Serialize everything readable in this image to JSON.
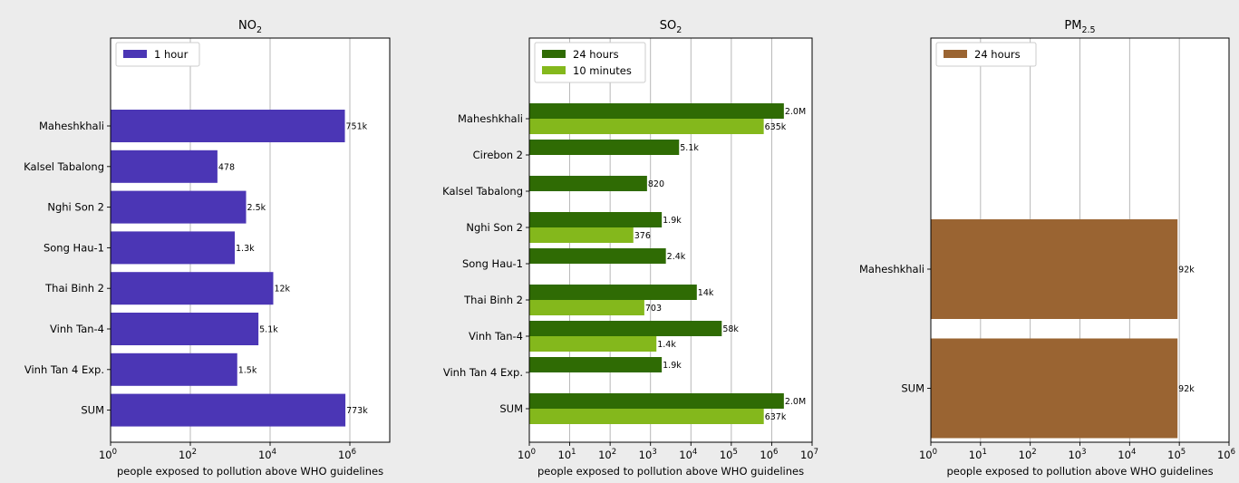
{
  "chart_data": [
    {
      "type": "bar",
      "orientation": "horizontal",
      "title_base": "NO",
      "title_sub": "2",
      "xlabel": "people exposed to pollution above WHO guidelines",
      "x_scale": "log",
      "xlim": [
        1,
        10000000
      ],
      "x_ticks": [
        {
          "base": "10",
          "exp": "0"
        },
        {
          "base": "10",
          "exp": "2"
        },
        {
          "base": "10",
          "exp": "4"
        },
        {
          "base": "10",
          "exp": "6"
        }
      ],
      "grid": true,
      "legend_position": "top-left",
      "categories": [
        "Maheshkhali",
        "Kalsel Tabalong",
        "Nghi Son 2",
        "Song Hau-1",
        "Thai Binh 2",
        "Vinh Tan-4",
        "Vinh Tan 4 Exp.",
        "SUM"
      ],
      "series": [
        {
          "name": "1 hour",
          "color": "#4b36b5",
          "values": [
            751000,
            478,
            2500,
            1300,
            12000,
            5100,
            1500,
            773000
          ],
          "labels": [
            "751k",
            "478",
            "2.5k",
            "1.3k",
            "12k",
            "5.1k",
            "1.5k",
            "773k"
          ]
        }
      ]
    },
    {
      "type": "bar",
      "orientation": "horizontal",
      "title_base": "SO",
      "title_sub": "2",
      "xlabel": "people exposed to pollution above WHO guidelines",
      "x_scale": "log",
      "xlim": [
        1,
        10000000
      ],
      "x_ticks": [
        {
          "base": "10",
          "exp": "0"
        },
        {
          "base": "10",
          "exp": "1"
        },
        {
          "base": "10",
          "exp": "2"
        },
        {
          "base": "10",
          "exp": "3"
        },
        {
          "base": "10",
          "exp": "4"
        },
        {
          "base": "10",
          "exp": "5"
        },
        {
          "base": "10",
          "exp": "6"
        },
        {
          "base": "10",
          "exp": "7"
        }
      ],
      "grid": true,
      "legend_position": "top-left",
      "categories": [
        "Maheshkhali",
        "Cirebon 2",
        "Kalsel Tabalong",
        "Nghi Son 2",
        "Song Hau-1",
        "Thai Binh 2",
        "Vinh Tan-4",
        "Vinh Tan 4 Exp.",
        "SUM"
      ],
      "series": [
        {
          "name": "24 hours",
          "color": "#2f6b04",
          "values": [
            2000000,
            5100,
            820,
            1900,
            2400,
            14000,
            58000,
            1900,
            2000000
          ],
          "labels": [
            "2.0M",
            "5.1k",
            "820",
            "1.9k",
            "2.4k",
            "14k",
            "58k",
            "1.9k",
            "2.0M"
          ]
        },
        {
          "name": "10 minutes",
          "color": "#84b81c",
          "values": [
            635000,
            null,
            null,
            376,
            null,
            703,
            1400,
            null,
            637000
          ],
          "labels": [
            "635k",
            null,
            null,
            "376",
            null,
            "703",
            "1.4k",
            null,
            "637k"
          ]
        }
      ]
    },
    {
      "type": "bar",
      "orientation": "horizontal",
      "title_base": "PM",
      "title_sub": "2.5",
      "xlabel": "people exposed to pollution above WHO guidelines",
      "x_scale": "log",
      "xlim": [
        1,
        1000000
      ],
      "x_ticks": [
        {
          "base": "10",
          "exp": "0"
        },
        {
          "base": "10",
          "exp": "1"
        },
        {
          "base": "10",
          "exp": "2"
        },
        {
          "base": "10",
          "exp": "3"
        },
        {
          "base": "10",
          "exp": "4"
        },
        {
          "base": "10",
          "exp": "5"
        },
        {
          "base": "10",
          "exp": "6"
        }
      ],
      "grid": true,
      "legend_position": "top-left",
      "categories": [
        "Maheshkhali",
        "SUM"
      ],
      "series": [
        {
          "name": "24 hours",
          "color": "#9a6432",
          "values": [
            92000,
            92000
          ],
          "labels": [
            "92k",
            "92k"
          ]
        }
      ]
    }
  ]
}
